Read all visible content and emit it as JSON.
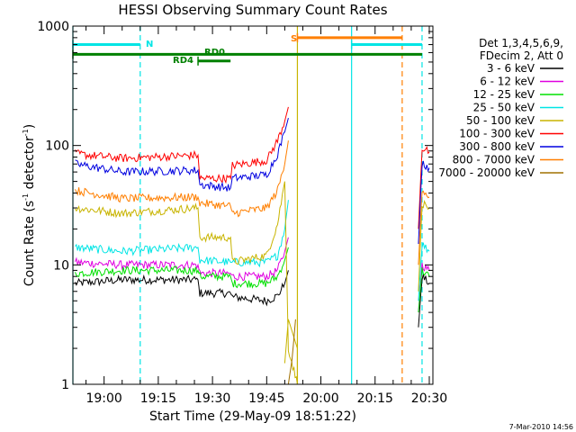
{
  "chart_data": {
    "type": "line",
    "title": "HESSI Observing Summary Count Rates",
    "xlabel": "Start Time (29-May-09 18:51:22)",
    "ylabel_main": "Count Rate (s",
    "ylabel_sup1": "-1",
    "ylabel_mid": " detector",
    "ylabel_sup2": "-1",
    "ylabel_end": ")",
    "yscale": "log",
    "ylim": [
      1,
      1000
    ],
    "xlim": [
      "18:51:22",
      "20:31:00"
    ],
    "y_ticks": [
      "1000",
      "100",
      "10",
      "1"
    ],
    "x_ticks": [
      "19:00",
      "19:15",
      "19:30",
      "19:45",
      "20:00",
      "20:15",
      "20:30"
    ],
    "grid": false,
    "legend_placement": "right",
    "legend_header": [
      "Det 1,3,4,5,6,9,",
      "FDecim 2, Att 0"
    ],
    "footer": "7-Mar-2010 14:56",
    "annotations": {
      "night_label": "N",
      "saa_label": "S",
      "rd0_label": "RD0",
      "rd4_label": "RD4"
    },
    "vertical_markers": [
      {
        "time": "18:51:22",
        "style": "solid",
        "color": "#00e5e5"
      },
      {
        "time": "19:10:00",
        "style": "dashed",
        "color": "#00e5e5"
      },
      {
        "time": "19:53:30",
        "style": "solid",
        "color": "#c8b400"
      },
      {
        "time": "20:08:30",
        "style": "solid",
        "color": "#00e5e5"
      },
      {
        "time": "20:22:30",
        "style": "dashed",
        "color": "#ff7f00"
      },
      {
        "time": "20:28:00",
        "style": "dashed",
        "color": "#00e5e5"
      }
    ],
    "flag_bars": [
      {
        "name": "N",
        "color": "#00e5e5",
        "y": 700,
        "segments": [
          [
            "18:51:22",
            "19:10:00"
          ],
          [
            "20:08:30",
            "20:28:00"
          ]
        ]
      },
      {
        "name": "S",
        "color": "#ff7f00",
        "y": 800,
        "segments": [
          [
            "19:53:30",
            "20:22:30"
          ]
        ]
      },
      {
        "name": "baseline",
        "color": "#008000",
        "y": 580,
        "segments": [
          [
            "18:51:22",
            "20:28:00"
          ]
        ]
      },
      {
        "name": "RD4",
        "color": "#008000",
        "y": 510,
        "segments": [
          [
            "19:26:00",
            "19:35:00"
          ]
        ]
      }
    ],
    "series": [
      {
        "name": "3 - 6 keV",
        "color": "#000000",
        "segments": [
          {
            "x": [
              "18:52",
              "19:05",
              "19:26",
              "19:26:30",
              "19:35",
              "19:35:30",
              "19:45",
              "19:48",
              "19:50",
              "19:51"
            ],
            "y": [
              7,
              7.5,
              7.5,
              5.8,
              5.8,
              5.4,
              5,
              5.5,
              7,
              9
            ]
          },
          {
            "x": [
              "20:27",
              "20:28",
              "20:30"
            ],
            "y": [
              3,
              8,
              7
            ]
          }
        ]
      },
      {
        "name": "6 - 12 keV",
        "color": "#e000e0",
        "segments": [
          {
            "x": [
              "18:52",
              "19:05",
              "19:26",
              "19:26:30",
              "19:35",
              "19:35:30",
              "19:45",
              "19:48",
              "19:50",
              "19:51"
            ],
            "y": [
              10.5,
              10,
              10,
              8.5,
              8.5,
              8,
              8,
              9,
              13,
              17
            ]
          },
          {
            "x": [
              "20:27",
              "20:28",
              "20:30"
            ],
            "y": [
              4,
              10,
              9
            ]
          }
        ]
      },
      {
        "name": "12 - 25 keV",
        "color": "#00e000",
        "segments": [
          {
            "x": [
              "18:52",
              "19:05",
              "19:26",
              "19:26:30",
              "19:35",
              "19:35:30",
              "19:45",
              "19:48",
              "19:50",
              "19:51"
            ],
            "y": [
              8.5,
              9,
              9,
              8,
              8,
              7,
              7,
              8,
              11,
              14
            ]
          },
          {
            "x": [
              "20:27",
              "20:28",
              "20:30"
            ],
            "y": [
              4,
              9,
              8
            ]
          }
        ]
      },
      {
        "name": "25 - 50 keV",
        "color": "#00e5e5",
        "segments": [
          {
            "x": [
              "18:52",
              "19:05",
              "19:26",
              "19:26:30",
              "19:35",
              "19:35:30",
              "19:45",
              "19:48",
              "19:50",
              "19:51"
            ],
            "y": [
              14,
              13,
              14,
              11,
              10.5,
              10.5,
              10.5,
              12,
              20,
              35
            ]
          },
          {
            "x": [
              "20:27",
              "20:28",
              "20:30"
            ],
            "y": [
              5,
              15,
              13
            ]
          }
        ]
      },
      {
        "name": "50 - 100 keV",
        "color": "#c8b400",
        "segments": [
          {
            "x": [
              "18:52",
              "19:05",
              "19:26",
              "19:26:30",
              "19:35",
              "19:35:30",
              "19:45",
              "19:48",
              "19:50",
              "19:51",
              "19:53:30",
              "19:53:30",
              "19:51",
              "19:50"
            ],
            "y": [
              30,
              27,
              30,
              17,
              17,
              10.5,
              12,
              22,
              50,
              2,
              1,
              2,
              3.5,
              1.5
            ]
          },
          {
            "x": [
              "20:27",
              "20:28",
              "20:30"
            ],
            "y": [
              6,
              33,
              30
            ]
          }
        ]
      },
      {
        "name": "100 - 300 keV",
        "color": "#ff0000",
        "segments": [
          {
            "x": [
              "18:52",
              "19:05",
              "19:26",
              "19:26:30",
              "19:35",
              "19:35:30",
              "19:45",
              "19:48",
              "19:50",
              "19:51"
            ],
            "y": [
              85,
              78,
              83,
              53,
              53,
              68,
              75,
              110,
              160,
              210
            ]
          },
          {
            "x": [
              "20:27",
              "20:28",
              "20:30"
            ],
            "y": [
              20,
              95,
              88
            ]
          }
        ]
      },
      {
        "name": "300 - 800 keV",
        "color": "#0000e0",
        "segments": [
          {
            "x": [
              "18:52",
              "19:05",
              "19:26",
              "19:26:30",
              "19:35",
              "19:35:30",
              "19:45",
              "19:48",
              "19:50",
              "19:51"
            ],
            "y": [
              70,
              60,
              62,
              47,
              44,
              53,
              57,
              85,
              130,
              170
            ]
          },
          {
            "x": [
              "20:27",
              "20:28",
              "20:30"
            ],
            "y": [
              15,
              72,
              65
            ]
          }
        ]
      },
      {
        "name": "800 - 7000 keV",
        "color": "#ff7f00",
        "segments": [
          {
            "x": [
              "18:52",
              "19:05",
              "19:26",
              "19:26:30",
              "19:35",
              "19:35:30",
              "19:45",
              "19:48",
              "19:50",
              "19:51"
            ],
            "y": [
              42,
              36,
              37,
              33,
              31,
              27,
              30,
              42,
              70,
              110
            ]
          },
          {
            "x": [
              "20:27",
              "20:28",
              "20:30"
            ],
            "y": [
              10,
              44,
              37
            ]
          }
        ]
      },
      {
        "name": "7000 - 20000 keV",
        "color": "#a07000",
        "segments": [
          {
            "x": [
              "19:51",
              "19:52",
              "19:53"
            ],
            "y": [
              1,
              1.6,
              3.5
            ]
          }
        ]
      }
    ]
  }
}
